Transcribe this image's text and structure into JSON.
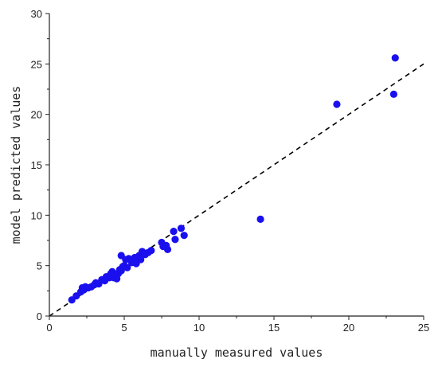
{
  "chart_data": {
    "type": "scatter",
    "title": "",
    "xlabel": "manually measured values",
    "ylabel": "model predicted values",
    "xlim": [
      0,
      25
    ],
    "ylim": [
      0,
      30
    ],
    "xticks": [
      0,
      5,
      10,
      15,
      20,
      25
    ],
    "yticks": [
      0,
      5,
      10,
      15,
      20,
      25,
      30
    ],
    "grid": false,
    "point_color": "#1a10ee",
    "reference_line": {
      "style": "dashed",
      "color": "#000000",
      "from": [
        0,
        0
      ],
      "to": [
        25,
        25
      ]
    },
    "series": [
      {
        "points": [
          [
            1.5,
            1.6
          ],
          [
            1.8,
            2.0
          ],
          [
            2.1,
            2.4
          ],
          [
            2.2,
            2.8
          ],
          [
            2.3,
            2.6
          ],
          [
            2.4,
            2.9
          ],
          [
            2.6,
            2.8
          ],
          [
            2.8,
            2.9
          ],
          [
            3.0,
            3.1
          ],
          [
            3.1,
            3.3
          ],
          [
            3.3,
            3.2
          ],
          [
            3.5,
            3.6
          ],
          [
            3.7,
            3.5
          ],
          [
            3.8,
            3.9
          ],
          [
            4.0,
            3.8
          ],
          [
            4.1,
            4.2
          ],
          [
            4.2,
            4.4
          ],
          [
            4.3,
            3.8
          ],
          [
            4.5,
            3.7
          ],
          [
            4.6,
            4.2
          ],
          [
            4.7,
            4.6
          ],
          [
            4.8,
            4.5
          ],
          [
            4.9,
            4.9
          ],
          [
            4.8,
            6.0
          ],
          [
            5.0,
            5.0
          ],
          [
            5.1,
            5.6
          ],
          [
            5.2,
            4.8
          ],
          [
            5.3,
            5.7
          ],
          [
            5.5,
            5.3
          ],
          [
            5.7,
            5.8
          ],
          [
            5.8,
            5.2
          ],
          [
            6.0,
            6.0
          ],
          [
            6.1,
            5.6
          ],
          [
            6.2,
            6.4
          ],
          [
            6.4,
            6.1
          ],
          [
            6.6,
            6.3
          ],
          [
            6.8,
            6.5
          ],
          [
            7.5,
            7.3
          ],
          [
            7.6,
            6.9
          ],
          [
            7.8,
            7.0
          ],
          [
            7.9,
            6.6
          ],
          [
            8.3,
            8.4
          ],
          [
            8.4,
            7.6
          ],
          [
            8.8,
            8.7
          ],
          [
            9.0,
            8.0
          ],
          [
            14.1,
            9.6
          ],
          [
            19.2,
            21.0
          ],
          [
            23.0,
            22.0
          ],
          [
            23.1,
            25.6
          ]
        ]
      }
    ]
  }
}
